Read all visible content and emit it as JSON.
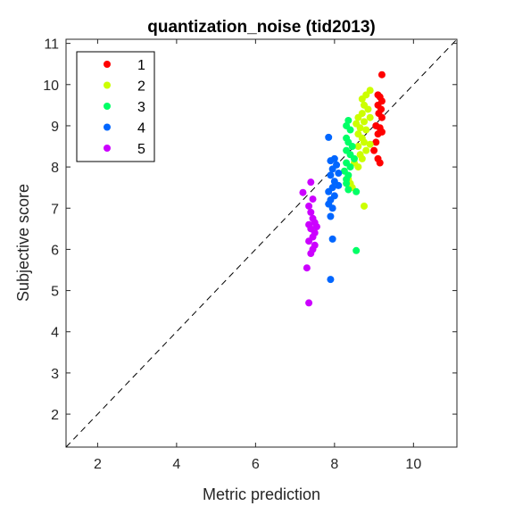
{
  "chart_data": {
    "type": "scatter",
    "title": "quantization_noise (tid2013)",
    "xlabel": "Metric prediction",
    "ylabel": "Subjective score",
    "xlim": [
      1.2,
      11.1
    ],
    "ylim": [
      1.2,
      11.1
    ],
    "xticks": [
      2,
      4,
      6,
      8,
      10
    ],
    "yticks": [
      2,
      3,
      4,
      5,
      6,
      7,
      8,
      9,
      10,
      11
    ],
    "grid": false,
    "legend_position": "top-left",
    "reference_line": "identity-dashed",
    "series": [
      {
        "name": "1",
        "color": "#ff0000",
        "points": [
          [
            9.2,
            10.24
          ],
          [
            9.1,
            9.75
          ],
          [
            9.15,
            9.7
          ],
          [
            9.2,
            9.6
          ],
          [
            9.1,
            9.5
          ],
          [
            9.18,
            9.4
          ],
          [
            9.12,
            9.3
          ],
          [
            9.2,
            9.2
          ],
          [
            9.05,
            9.0
          ],
          [
            9.15,
            8.95
          ],
          [
            9.2,
            8.85
          ],
          [
            9.1,
            8.8
          ],
          [
            9.05,
            8.6
          ],
          [
            9.0,
            8.4
          ],
          [
            9.1,
            8.2
          ],
          [
            9.15,
            8.1
          ]
        ]
      },
      {
        "name": "2",
        "color": "#ccff00",
        "points": [
          [
            8.9,
            9.86
          ],
          [
            8.8,
            9.75
          ],
          [
            8.7,
            9.65
          ],
          [
            8.75,
            9.5
          ],
          [
            8.85,
            9.4
          ],
          [
            8.7,
            9.3
          ],
          [
            8.6,
            9.2
          ],
          [
            8.9,
            9.2
          ],
          [
            8.75,
            9.1
          ],
          [
            8.55,
            9.05
          ],
          [
            8.65,
            8.95
          ],
          [
            8.8,
            8.9
          ],
          [
            8.6,
            8.8
          ],
          [
            8.7,
            8.7
          ],
          [
            8.75,
            8.6
          ],
          [
            8.9,
            8.55
          ],
          [
            8.6,
            8.5
          ],
          [
            8.8,
            8.4
          ],
          [
            8.65,
            8.3
          ],
          [
            8.7,
            8.2
          ],
          [
            8.5,
            8.1
          ],
          [
            8.6,
            8.0
          ],
          [
            8.35,
            7.7
          ],
          [
            8.4,
            7.6
          ],
          [
            8.45,
            7.5
          ],
          [
            8.75,
            7.05
          ]
        ]
      },
      {
        "name": "3",
        "color": "#00ff66",
        "points": [
          [
            8.35,
            9.13
          ],
          [
            8.3,
            9.0
          ],
          [
            8.4,
            8.9
          ],
          [
            8.3,
            8.7
          ],
          [
            8.35,
            8.6
          ],
          [
            8.45,
            8.5
          ],
          [
            8.3,
            8.4
          ],
          [
            8.4,
            8.3
          ],
          [
            8.5,
            8.2
          ],
          [
            8.3,
            8.1
          ],
          [
            8.4,
            8.0
          ],
          [
            8.25,
            7.9
          ],
          [
            8.35,
            7.8
          ],
          [
            8.3,
            7.7
          ],
          [
            8.55,
            7.4
          ],
          [
            8.3,
            7.6
          ],
          [
            8.35,
            7.45
          ],
          [
            8.55,
            5.97
          ]
        ]
      },
      {
        "name": "4",
        "color": "#0066ff",
        "points": [
          [
            7.85,
            8.72
          ],
          [
            8.0,
            8.2
          ],
          [
            7.9,
            8.15
          ],
          [
            8.05,
            8.05
          ],
          [
            7.95,
            7.95
          ],
          [
            8.1,
            7.85
          ],
          [
            7.9,
            7.8
          ],
          [
            8.0,
            7.65
          ],
          [
            8.1,
            7.55
          ],
          [
            7.95,
            7.5
          ],
          [
            7.85,
            7.4
          ],
          [
            8.0,
            7.3
          ],
          [
            7.9,
            7.2
          ],
          [
            7.85,
            7.1
          ],
          [
            7.95,
            7.0
          ],
          [
            7.9,
            6.8
          ],
          [
            7.95,
            6.25
          ],
          [
            7.9,
            5.27
          ]
        ]
      },
      {
        "name": "5",
        "color": "#cc00ff",
        "points": [
          [
            7.4,
            7.63
          ],
          [
            7.2,
            7.38
          ],
          [
            7.45,
            7.22
          ],
          [
            7.35,
            7.05
          ],
          [
            7.4,
            6.9
          ],
          [
            7.45,
            6.75
          ],
          [
            7.5,
            6.65
          ],
          [
            7.35,
            6.6
          ],
          [
            7.55,
            6.55
          ],
          [
            7.4,
            6.5
          ],
          [
            7.5,
            6.4
          ],
          [
            7.45,
            6.3
          ],
          [
            7.35,
            6.2
          ],
          [
            7.5,
            6.1
          ],
          [
            7.45,
            6.0
          ],
          [
            7.4,
            5.9
          ],
          [
            7.3,
            5.55
          ],
          [
            7.35,
            4.7
          ]
        ]
      }
    ]
  }
}
